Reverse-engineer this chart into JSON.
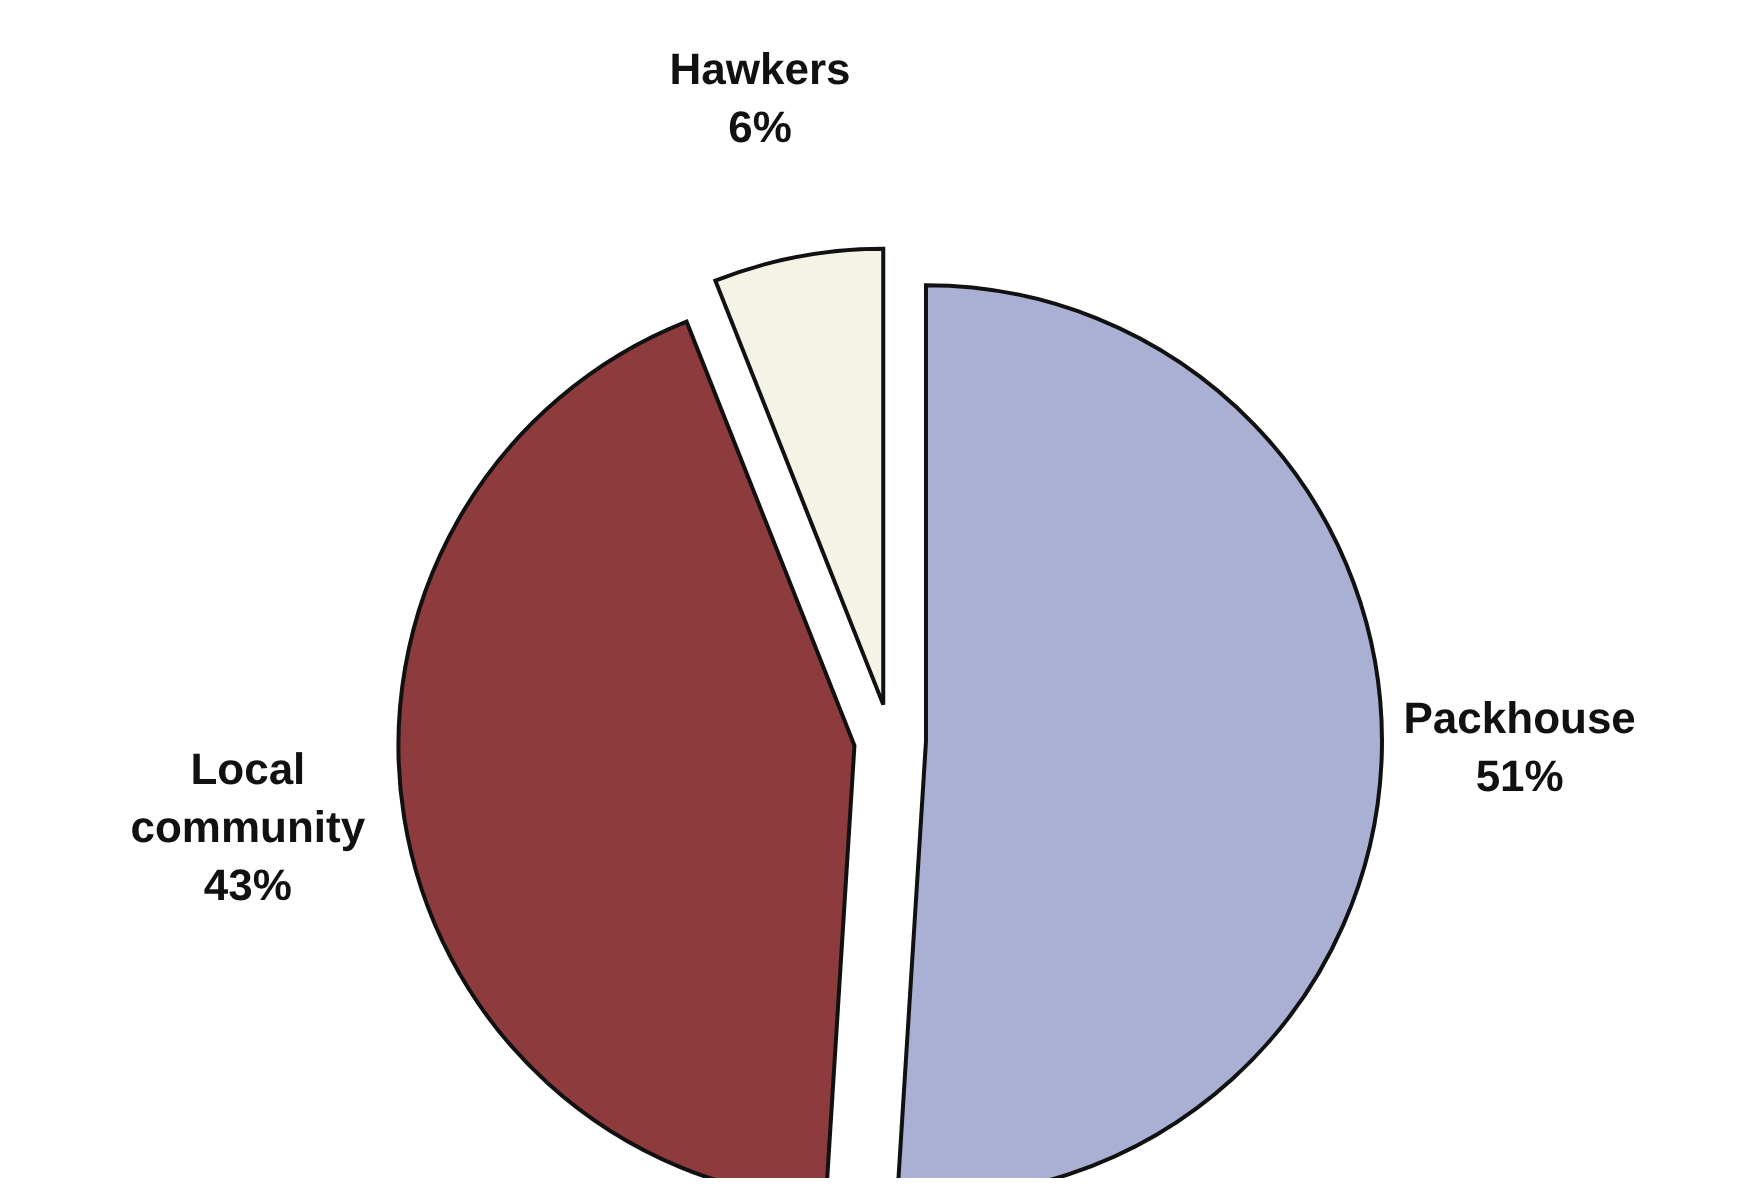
{
  "chart_data": {
    "type": "pie",
    "categories": [
      "Packhouse",
      "Local community",
      "Hawkers"
    ],
    "values": [
      51,
      43,
      6
    ],
    "value_labels": [
      "51%",
      "43%",
      "6%"
    ],
    "colors": [
      "#aab0d4",
      "#8e3b3d",
      "#f5f3e6"
    ]
  }
}
